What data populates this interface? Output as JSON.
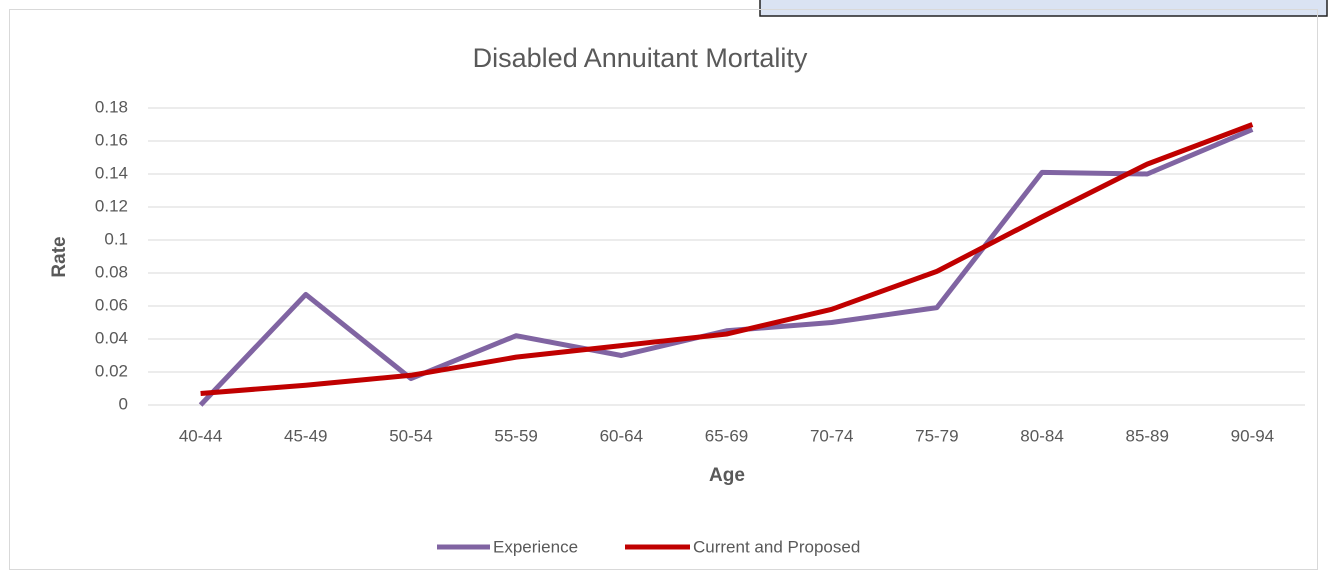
{
  "chart_data": {
    "type": "line",
    "title": "Disabled Annuitant Mortality",
    "x_label": "Age",
    "y_label": "Rate",
    "categories": [
      "40-44",
      "45-49",
      "50-54",
      "55-59",
      "60-64",
      "65-69",
      "70-74",
      "75-79",
      "80-84",
      "85-89",
      "90-94"
    ],
    "series": [
      {
        "name": "Experience",
        "color": "#8064a2",
        "values": [
          0,
          0.067,
          0.016,
          0.042,
          0.03,
          0.045,
          0.05,
          0.059,
          0.141,
          0.14,
          0.167
        ]
      },
      {
        "name": "Current and Proposed",
        "color": "#c00000",
        "values": [
          0.007,
          0.012,
          0.018,
          0.029,
          0.036,
          0.043,
          0.058,
          0.081,
          0.114,
          0.146,
          0.17
        ]
      }
    ],
    "ylim": [
      0,
      0.18
    ],
    "yticks": [
      0,
      0.02,
      0.04,
      0.06,
      0.08,
      0.1,
      0.12,
      0.14,
      0.16,
      0.18
    ],
    "grid": true,
    "legend": "bottom"
  }
}
